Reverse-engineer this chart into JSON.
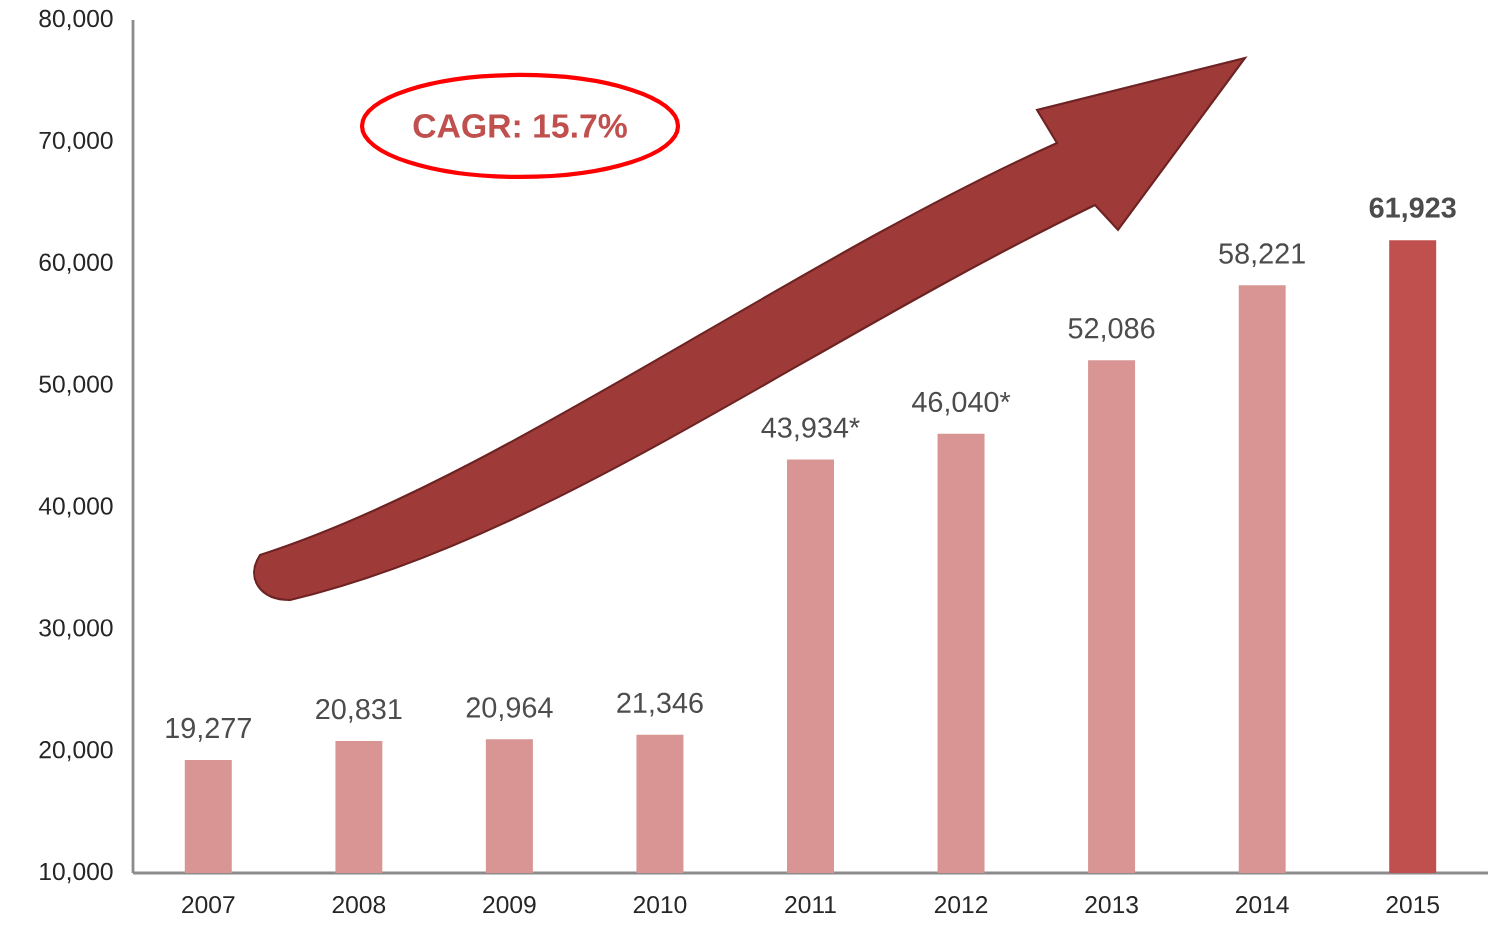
{
  "chart_data": {
    "type": "bar",
    "categories": [
      "2007",
      "2008",
      "2009",
      "2010",
      "2011",
      "2012",
      "2013",
      "2014",
      "2015"
    ],
    "values": [
      19277,
      20831,
      20964,
      21346,
      43934,
      46040,
      52086,
      58221,
      61923
    ],
    "value_labels": [
      "19,277",
      "20,831",
      "20,964",
      "21,346",
      "43,934*",
      "46,040*",
      "52,086",
      "58,221",
      "**61,923**"
    ],
    "colors": [
      "#d99594",
      "#d99594",
      "#d99594",
      "#d99594",
      "#d99594",
      "#d99594",
      "#d99594",
      "#d99594",
      "#c0504d"
    ],
    "ylim": [
      10000,
      80000
    ],
    "yticks": [
      {
        "value": 10000,
        "label": "10,000"
      },
      {
        "value": 20000,
        "label": "20,000"
      },
      {
        "value": 30000,
        "label": "30,000"
      },
      {
        "value": 40000,
        "label": "40,000"
      },
      {
        "value": 50000,
        "label": "50,000"
      },
      {
        "value": 60000,
        "label": "60,000"
      },
      {
        "value": 70000,
        "label": "70,000"
      },
      {
        "value": 80000,
        "label": "80,000"
      }
    ],
    "annotations": [
      "CAGR: 15.7%"
    ],
    "grid": false
  }
}
